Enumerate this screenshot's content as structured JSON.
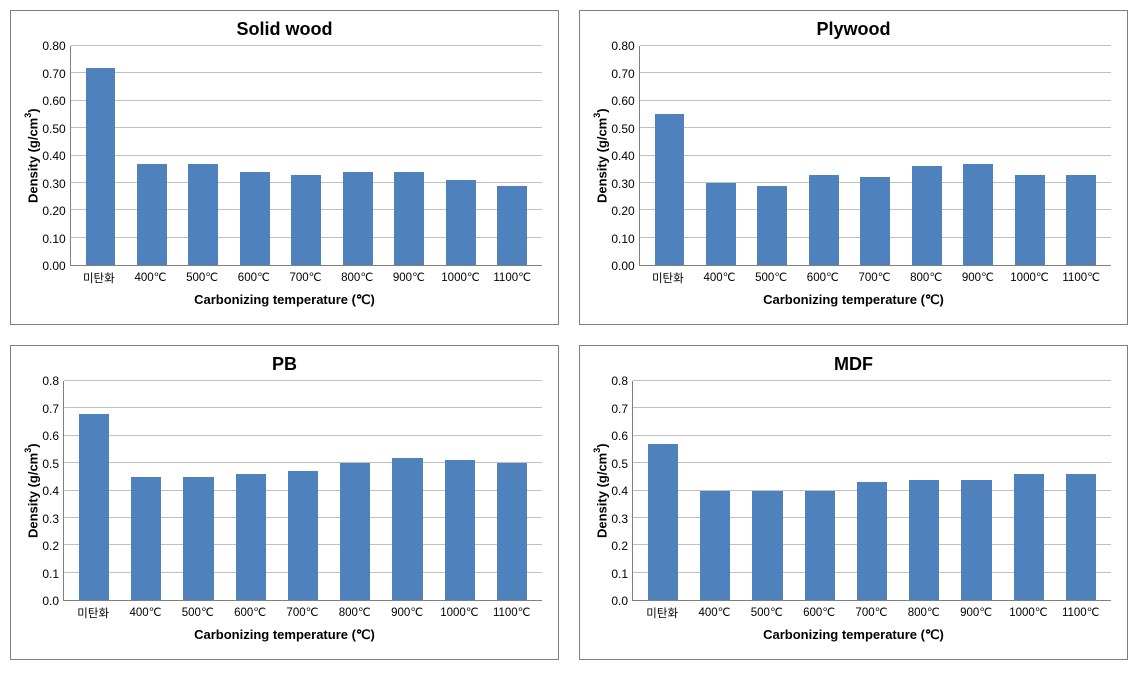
{
  "layout": {
    "rows": 2,
    "cols": 2
  },
  "bar_color": "#4f81bd",
  "grid_color": "#c0c0c0",
  "axis_color": "#808080",
  "background_color": "#ffffff",
  "title_fontsize": 18,
  "label_fontsize": 13,
  "tick_fontsize": 12,
  "charts": [
    {
      "id": "solid_wood",
      "type": "bar",
      "title": "Solid wood",
      "ylabel_html": "Density (g/cm<sup>3</sup>)",
      "xlabel": "Carbonizing temperature (℃)",
      "ylim": [
        0.0,
        0.8
      ],
      "ytick_step": 0.1,
      "ytick_decimals": 2,
      "bar_width": 0.58,
      "categories": [
        "미탄화",
        "400℃",
        "500℃",
        "600℃",
        "700℃",
        "800℃",
        "900℃",
        "1000℃",
        "1100℃"
      ],
      "values": [
        0.72,
        0.37,
        0.37,
        0.34,
        0.33,
        0.34,
        0.34,
        0.31,
        0.29
      ]
    },
    {
      "id": "plywood",
      "type": "bar",
      "title": "Plywood",
      "ylabel_html": "Density (g/cm<sup>3</sup>)",
      "xlabel": "Carbonizing temperature (℃)",
      "ylim": [
        0.0,
        0.8
      ],
      "ytick_step": 0.1,
      "ytick_decimals": 2,
      "bar_width": 0.58,
      "categories": [
        "미탄화",
        "400℃",
        "500℃",
        "600℃",
        "700℃",
        "800℃",
        "900℃",
        "1000℃",
        "1100℃"
      ],
      "values": [
        0.55,
        0.3,
        0.29,
        0.33,
        0.32,
        0.36,
        0.37,
        0.33,
        0.33
      ]
    },
    {
      "id": "pb",
      "type": "bar",
      "title": "PB",
      "ylabel_html": "Density (g/cm<sup>3</sup>)",
      "xlabel": "Carbonizing temperature (℃)",
      "ylim": [
        0.0,
        0.8
      ],
      "ytick_step": 0.1,
      "ytick_decimals": 1,
      "bar_width": 0.58,
      "categories": [
        "미탄화",
        "400℃",
        "500℃",
        "600℃",
        "700℃",
        "800℃",
        "900℃",
        "1000℃",
        "1100℃"
      ],
      "values": [
        0.68,
        0.45,
        0.45,
        0.46,
        0.47,
        0.5,
        0.52,
        0.51,
        0.5
      ]
    },
    {
      "id": "mdf",
      "type": "bar",
      "title": "MDF",
      "ylabel_html": "Density (g/cm<sup>3</sup>)",
      "xlabel": "Carbonizing temperature (℃)",
      "ylim": [
        0.0,
        0.8
      ],
      "ytick_step": 0.1,
      "ytick_decimals": 1,
      "bar_width": 0.58,
      "categories": [
        "미탄화",
        "400℃",
        "500℃",
        "600℃",
        "700℃",
        "800℃",
        "900℃",
        "1000℃",
        "1100℃"
      ],
      "values": [
        0.57,
        0.4,
        0.4,
        0.4,
        0.43,
        0.44,
        0.44,
        0.46,
        0.46
      ]
    }
  ]
}
